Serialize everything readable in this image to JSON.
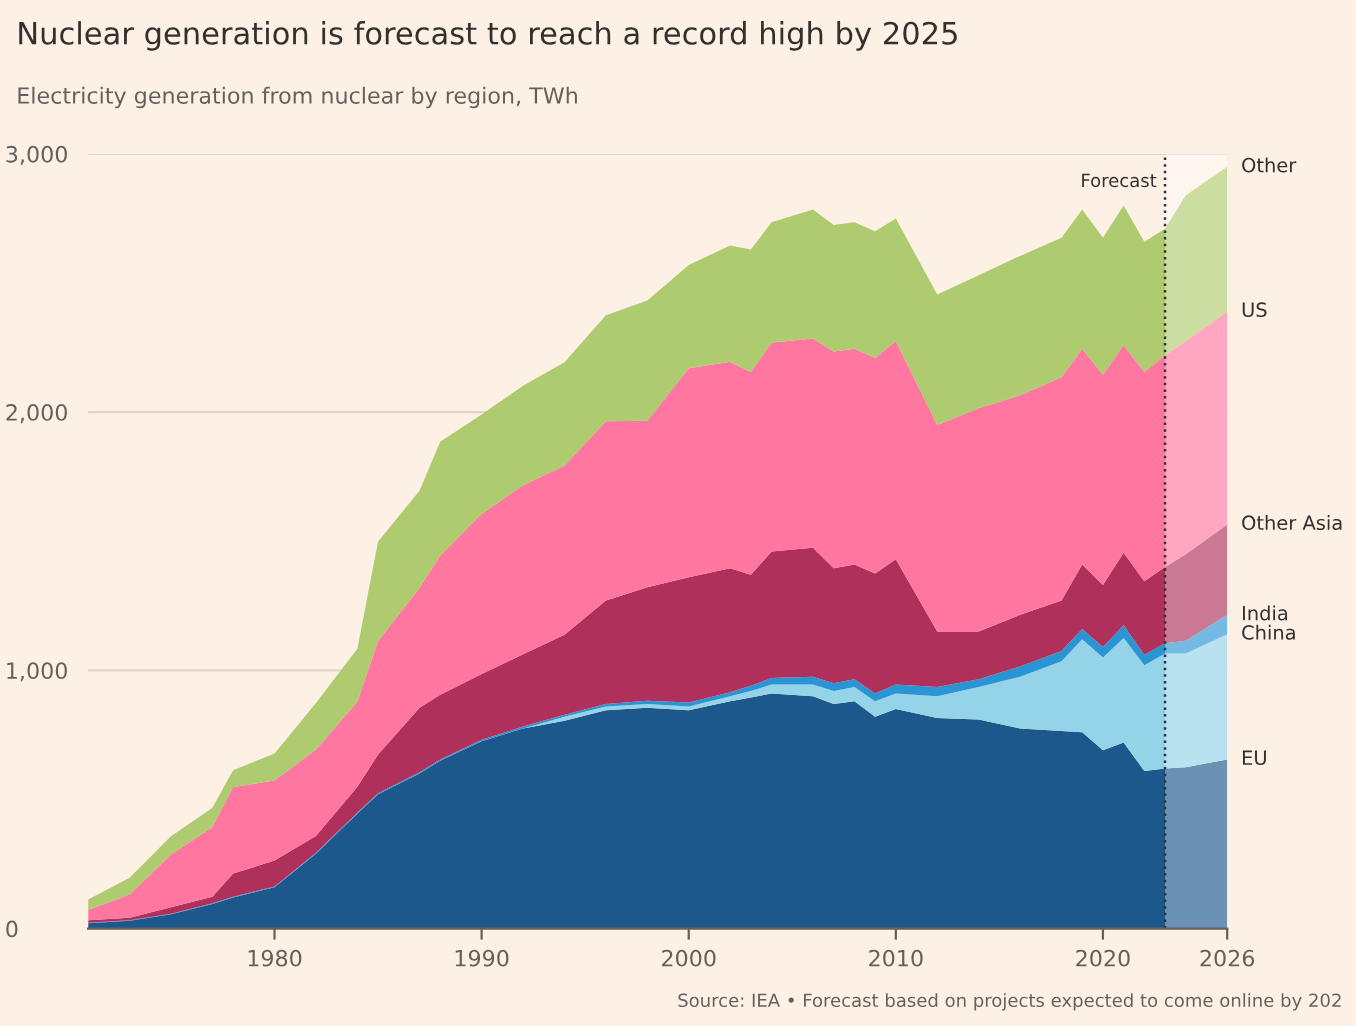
{
  "chart_data": {
    "type": "area",
    "stacked": true,
    "title": "Nuclear generation is forecast to reach a record high by 2025",
    "subtitle": "Electricity generation from nuclear by region, TWh",
    "x": [
      1971,
      1973,
      1975,
      1977,
      1978,
      1980,
      1982,
      1984,
      1985,
      1987,
      1988,
      1990,
      1992,
      1994,
      1996,
      1998,
      2000,
      2002,
      2003,
      2004,
      2006,
      2007,
      2008,
      2009,
      2010,
      2012,
      2014,
      2016,
      2018,
      2019,
      2020,
      2021,
      2022,
      2023,
      2024,
      2026
    ],
    "series": [
      {
        "name": "EU",
        "color": "#1d588c",
        "values": [
          20,
          30,
          55,
          95,
          120,
          160,
          290,
          445,
          520,
          600,
          650,
          725,
          775,
          805,
          845,
          855,
          845,
          880,
          895,
          910,
          900,
          870,
          880,
          820,
          850,
          815,
          810,
          775,
          765,
          760,
          690,
          720,
          610,
          620,
          625,
          655
        ]
      },
      {
        "name": "China",
        "color": "#94d3e8",
        "values": [
          0,
          0,
          0,
          0,
          0,
          0,
          0,
          0,
          0,
          0,
          0,
          0,
          0,
          15,
          15,
          15,
          15,
          20,
          25,
          35,
          45,
          50,
          55,
          60,
          60,
          85,
          125,
          200,
          270,
          360,
          360,
          405,
          410,
          445,
          440,
          485
        ]
      },
      {
        "name": "India",
        "color": "#2a95d5",
        "values": [
          2,
          2,
          2,
          3,
          3,
          3,
          3,
          4,
          4,
          5,
          5,
          6,
          7,
          8,
          10,
          12,
          15,
          15,
          20,
          25,
          30,
          30,
          30,
          30,
          35,
          35,
          30,
          40,
          40,
          40,
          40,
          50,
          40,
          40,
          50,
          75
        ]
      },
      {
        "name": "Other Asia",
        "color": "#b0305c",
        "values": [
          10,
          10,
          25,
          25,
          90,
          100,
          65,
          100,
          150,
          250,
          250,
          255,
          280,
          310,
          400,
          440,
          485,
          480,
          430,
          490,
          500,
          445,
          445,
          465,
          485,
          215,
          185,
          200,
          195,
          250,
          240,
          280,
          285,
          295,
          335,
          350
        ]
      },
      {
        "name": "US",
        "color": "#ff77a0",
        "values": [
          40,
          90,
          205,
          270,
          335,
          310,
          335,
          330,
          440,
          465,
          540,
          620,
          655,
          655,
          695,
          645,
          810,
          800,
          785,
          810,
          810,
          840,
          835,
          835,
          845,
          800,
          865,
          850,
          865,
          835,
          815,
          805,
          810,
          820,
          825,
          825
        ]
      },
      {
        "name": "Other",
        "color": "#afcb6f",
        "values": [
          40,
          65,
          70,
          75,
          65,
          105,
          180,
          205,
          385,
          375,
          440,
          385,
          385,
          400,
          410,
          465,
          400,
          450,
          475,
          465,
          500,
          490,
          490,
          490,
          475,
          505,
          515,
          540,
          540,
          540,
          530,
          540,
          505,
          490,
          565,
          560
        ]
      }
    ],
    "xlim": [
      1971,
      2026
    ],
    "xticks": [
      1980,
      1990,
      2000,
      2010,
      2020,
      2026
    ],
    "ylim": [
      0,
      3000
    ],
    "yticks": [
      0,
      {
        "value": 1000,
        "label": "1,000"
      },
      {
        "value": 2000,
        "label": "2,000"
      },
      {
        "value": 3000,
        "label": "3,000"
      }
    ],
    "grid": "y",
    "legend": false,
    "ref_lines": [
      {
        "axis": "x",
        "value": 2023,
        "label": "Forecast",
        "line_style": "dotted",
        "color": "#333333"
      }
    ],
    "bands": [
      {
        "axis": "x",
        "from": 2023,
        "to": 2026,
        "color": "#ffffff"
      }
    ],
    "annotations": [
      "Source: IEA • Forecast based on projects expected to come online by 202"
    ]
  }
}
